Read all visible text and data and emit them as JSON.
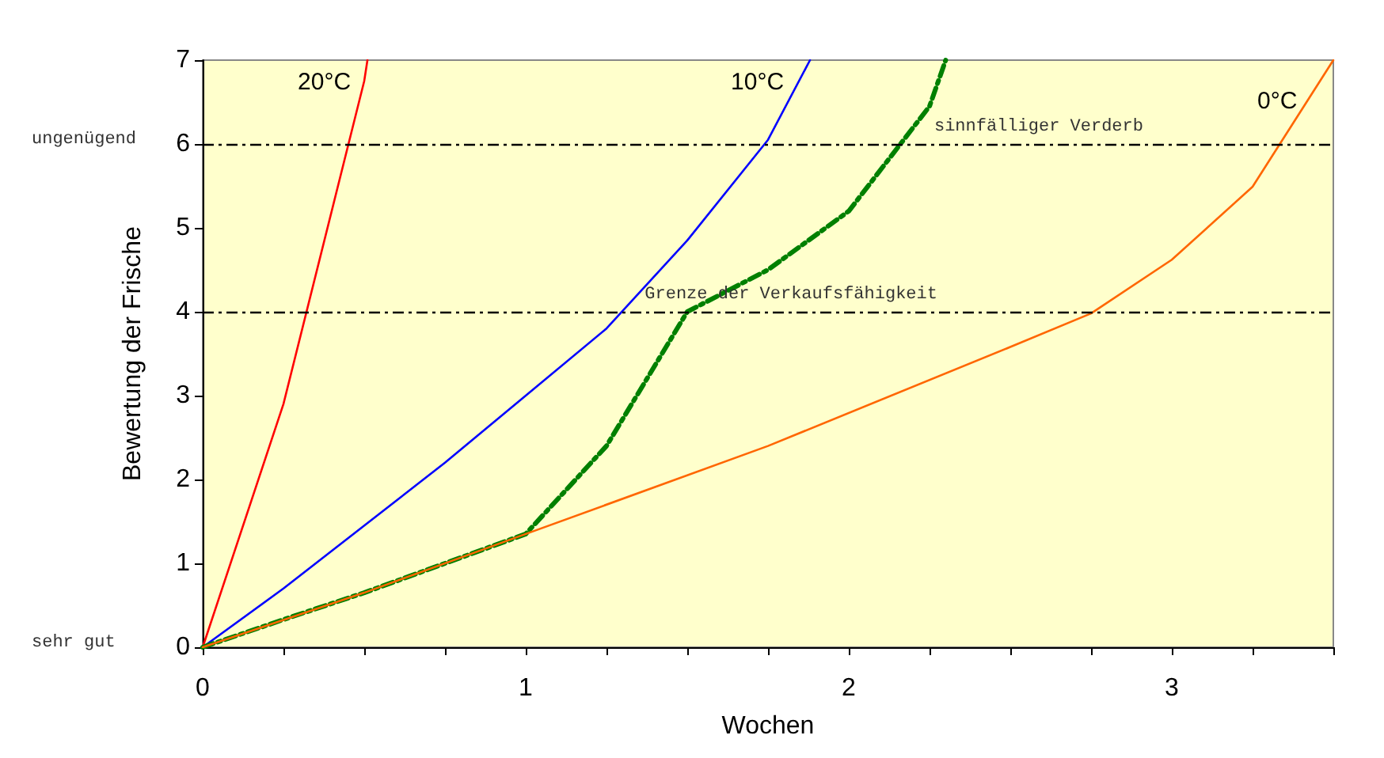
{
  "chart_data": {
    "type": "line",
    "xlabel": "Wochen",
    "ylabel": "Bewertung der Frische",
    "series": [
      {
        "name": "20°C",
        "color": "#ff0000",
        "x": [
          0,
          0.25,
          0.5,
          0.51
        ],
        "values": [
          0,
          2.9,
          6.75,
          7
        ]
      },
      {
        "name": "10°C",
        "color": "#0000ff",
        "x": [
          0,
          0.25,
          0.75,
          1.25,
          1.5,
          1.75,
          1.88
        ],
        "values": [
          0,
          0.7,
          2.2,
          3.8,
          4.85,
          6.05,
          7
        ]
      },
      {
        "color": "#008000",
        "line_style": "dashed",
        "x": [
          0,
          0.25,
          0.5,
          0.75,
          1,
          1.25,
          1.5,
          1.75,
          2,
          2.25,
          2.3
        ],
        "values": [
          0,
          0.33,
          0.65,
          1.0,
          1.35,
          2.4,
          4.0,
          4.5,
          5.2,
          6.45,
          7
        ]
      },
      {
        "name": "0°C",
        "color": "#ff6600",
        "x": [
          0,
          0.5,
          1,
          1.75,
          2.5,
          2.75,
          3,
          3.25,
          3.5
        ],
        "values": [
          0,
          0.65,
          1.35,
          2.4,
          3.58,
          3.98,
          4.62,
          5.49,
          7
        ]
      }
    ],
    "xlim": [
      0,
      3.5
    ],
    "xticks": [
      0,
      {
        "value": 0.25,
        "label": null
      },
      {
        "value": 0.5,
        "label": null
      },
      {
        "value": 0.75,
        "label": null
      },
      1,
      {
        "value": 1.25,
        "label": null
      },
      {
        "value": 1.5,
        "label": null
      },
      {
        "value": 1.75,
        "label": null
      },
      2,
      {
        "value": 2.25,
        "label": null
      },
      {
        "value": 2.5,
        "label": null
      },
      {
        "value": 2.75,
        "label": null
      },
      3,
      {
        "value": 3.25,
        "label": null
      },
      {
        "value": 3.5,
        "label": null
      }
    ],
    "ylim": [
      0,
      7
    ],
    "yticks": [
      0,
      1,
      2,
      3,
      4,
      5,
      6,
      7
    ],
    "ref_lines": [
      {
        "axis": "y",
        "value": 6,
        "label": "sinnfälliger Verderb",
        "color": "#000000",
        "line_style": "dashed"
      },
      {
        "axis": "y",
        "value": 4,
        "label": "Grenze der Verkaufsfähigkeit",
        "color": "#000000",
        "line_style": "dashed"
      }
    ],
    "annotations": [
      "ungenügend",
      "sehr gut"
    ],
    "grid": false,
    "legend": false,
    "marker": "none",
    "line_style": "solid"
  }
}
